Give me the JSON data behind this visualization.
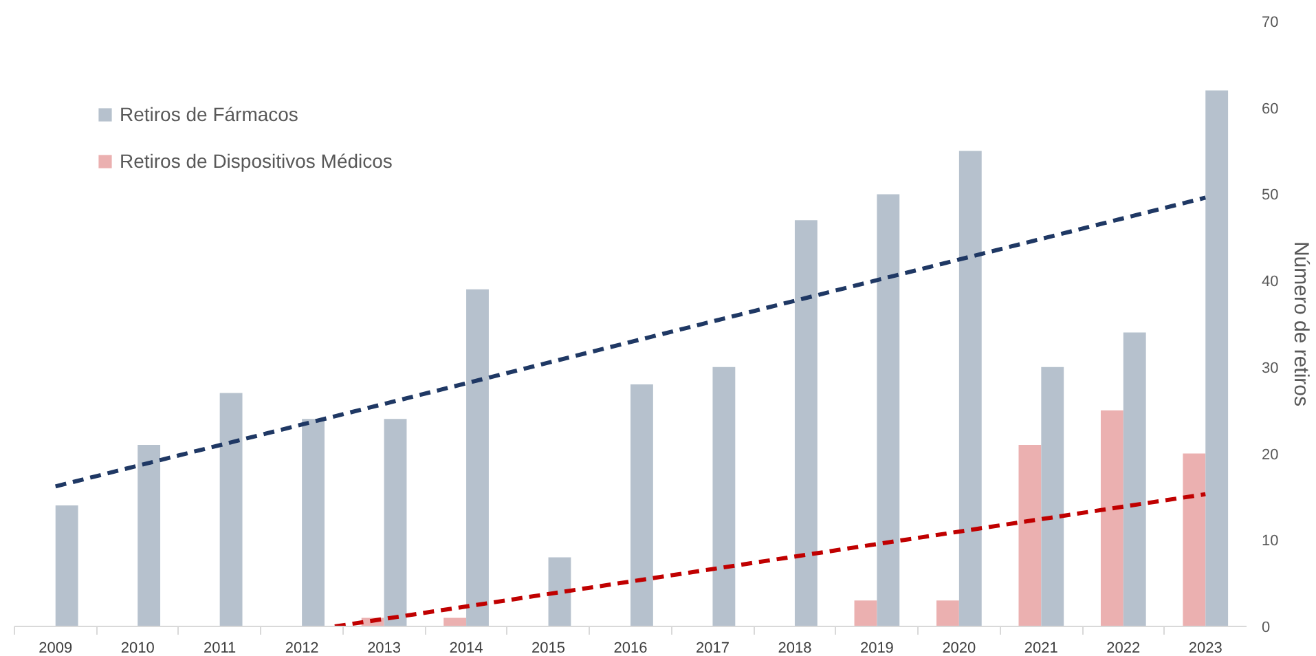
{
  "chart_data": {
    "type": "bar",
    "ylabel": "Número de retiros",
    "x": [
      2009,
      2010,
      2011,
      2012,
      2013,
      2014,
      2015,
      2016,
      2017,
      2018,
      2019,
      2020,
      2021,
      2022,
      2023
    ],
    "xlim": [
      2008.5,
      2023.5
    ],
    "xticks": [
      2009,
      2010,
      2011,
      2012,
      2013,
      2014,
      2015,
      2016,
      2017,
      2018,
      2019,
      2020,
      2021,
      2022,
      2023
    ],
    "ylim": [
      0,
      70
    ],
    "yticks": [
      0,
      10,
      20,
      30,
      40,
      50,
      60,
      70
    ],
    "series": [
      {
        "name": "Retiros de Dispositivos Médicos",
        "color": "#ebb0b0",
        "values": [
          null,
          null,
          null,
          null,
          1,
          1,
          null,
          null,
          null,
          null,
          3,
          3,
          21,
          25,
          20
        ]
      },
      {
        "name": "Retiros de Fármacos",
        "color": "#b6c1cd",
        "values": [
          14,
          21,
          27,
          24,
          24,
          39,
          8,
          28,
          30,
          47,
          50,
          55,
          30,
          34,
          62
        ]
      },
      {
        "type": "line",
        "color": "#1f3864",
        "line_style": "dashed",
        "x": [
          2009,
          2023
        ],
        "values": [
          16.2,
          49.6
        ]
      },
      {
        "type": "line",
        "color": "#c00000",
        "line_style": "dashed",
        "x": [
          2012.4,
          2023
        ],
        "values": [
          0,
          15.3
        ]
      }
    ],
    "legend": "top left",
    "grid": false
  }
}
